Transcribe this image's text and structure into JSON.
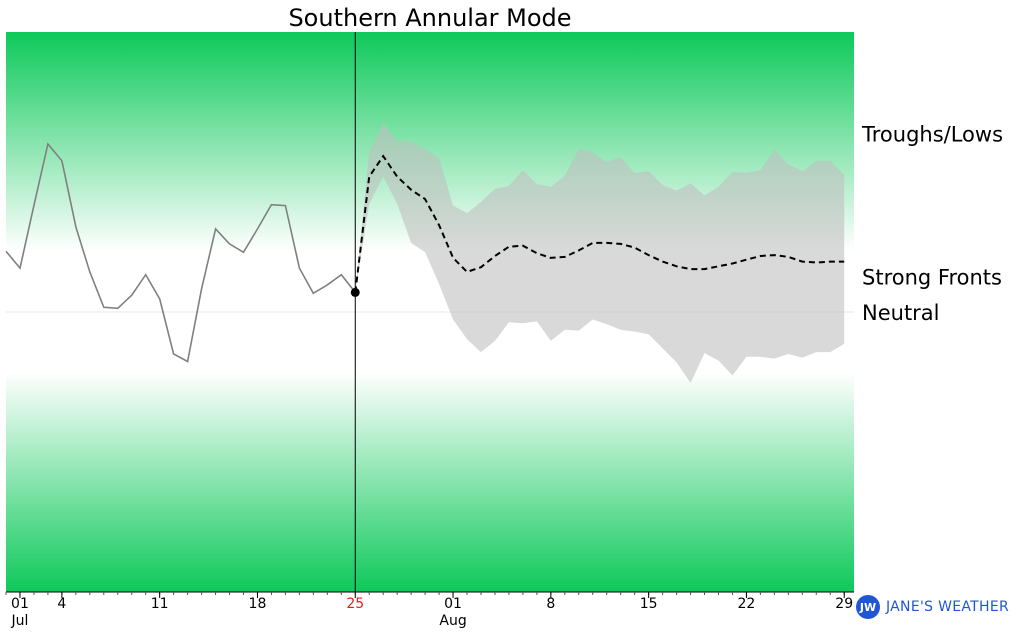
{
  "chart_data": {
    "type": "line",
    "title": "Southern Annular Mode",
    "xlabel": "",
    "ylabel": "",
    "x_range": [
      0,
      60.7
    ],
    "y_range": [
      -3,
      3
    ],
    "today_day": 25,
    "today_label": "25",
    "zones": [
      {
        "label": "Troughs/Lows",
        "from": 0.65,
        "to": 3.0,
        "color": "#0dc95a"
      },
      {
        "label": "Neutral",
        "from": -0.65,
        "to": 0.65,
        "color": "#ffffff"
      },
      {
        "label": "Strong Fronts",
        "from": -3.0,
        "to": -0.65,
        "color": "#0dc95a"
      }
    ],
    "x_ticks": [
      {
        "day": 1,
        "label": "01",
        "sub": "Jul"
      },
      {
        "day": 4,
        "label": "4",
        "sub": ""
      },
      {
        "day": 11,
        "label": "11",
        "sub": ""
      },
      {
        "day": 18,
        "label": "18",
        "sub": ""
      },
      {
        "day": 25,
        "label": "25",
        "sub": "",
        "highlight": true
      },
      {
        "day": 32,
        "label": "01",
        "sub": "Aug"
      },
      {
        "day": 39,
        "label": "8",
        "sub": ""
      },
      {
        "day": 46,
        "label": "15",
        "sub": ""
      },
      {
        "day": 53,
        "label": "22",
        "sub": ""
      },
      {
        "day": 60,
        "label": "29",
        "sub": ""
      }
    ],
    "series": [
      {
        "kind": "observed",
        "color": "#808080",
        "x": [
          0,
          1,
          2,
          3,
          4,
          5,
          6,
          7,
          8,
          9,
          10,
          11,
          12,
          13,
          14,
          15,
          16,
          17,
          18,
          19,
          20,
          21,
          22,
          23,
          24,
          25
        ],
        "y": [
          0.65,
          0.47,
          1.14,
          1.8,
          1.62,
          0.91,
          0.43,
          0.05,
          0.04,
          0.18,
          0.4,
          0.14,
          -0.45,
          -0.53,
          0.25,
          0.89,
          0.73,
          0.64,
          0.89,
          1.15,
          1.14,
          0.47,
          0.2,
          0.29,
          0.4,
          0.21
        ]
      },
      {
        "kind": "forecast",
        "color": "#000000",
        "x": [
          25,
          26,
          27,
          28,
          29,
          30,
          31,
          32,
          33,
          34,
          35,
          36,
          37,
          38,
          39,
          40,
          41,
          42,
          43,
          44,
          45,
          46,
          47,
          48,
          49,
          50,
          51,
          52,
          53,
          54,
          55,
          56,
          57,
          58,
          59,
          60
        ],
        "y": [
          0.21,
          1.45,
          1.67,
          1.45,
          1.31,
          1.21,
          0.93,
          0.58,
          0.43,
          0.48,
          0.6,
          0.7,
          0.71,
          0.63,
          0.58,
          0.59,
          0.66,
          0.74,
          0.74,
          0.73,
          0.69,
          0.61,
          0.54,
          0.49,
          0.46,
          0.46,
          0.49,
          0.52,
          0.56,
          0.6,
          0.61,
          0.59,
          0.54,
          0.53,
          0.54,
          0.54
        ]
      }
    ],
    "ensemble_band": {
      "color": "#c0c0c0",
      "x": [
        25,
        26,
        27,
        28,
        29,
        30,
        31,
        32,
        33,
        34,
        35,
        36,
        37,
        38,
        39,
        40,
        41,
        42,
        43,
        44,
        45,
        46,
        47,
        48,
        49,
        50,
        51,
        52,
        53,
        54,
        55,
        56,
        57,
        58,
        59,
        60
      ],
      "upper": [
        0.21,
        1.72,
        2.02,
        1.83,
        1.83,
        1.74,
        1.65,
        1.14,
        1.06,
        1.18,
        1.32,
        1.35,
        1.52,
        1.37,
        1.34,
        1.46,
        1.75,
        1.71,
        1.61,
        1.66,
        1.49,
        1.51,
        1.36,
        1.3,
        1.38,
        1.25,
        1.34,
        1.5,
        1.49,
        1.52,
        1.74,
        1.58,
        1.51,
        1.62,
        1.62,
        1.47
      ],
      "lower": [
        0.21,
        1.16,
        1.45,
        1.16,
        0.74,
        0.64,
        0.3,
        -0.08,
        -0.29,
        -0.43,
        -0.31,
        -0.11,
        -0.12,
        -0.1,
        -0.31,
        -0.19,
        -0.2,
        -0.08,
        -0.13,
        -0.19,
        -0.21,
        -0.24,
        -0.39,
        -0.54,
        -0.76,
        -0.44,
        -0.52,
        -0.68,
        -0.48,
        -0.48,
        -0.5,
        -0.45,
        -0.49,
        -0.43,
        -0.43,
        -0.34
      ]
    }
  },
  "brand": {
    "badge": "JW",
    "text": "JANE'S WEATHER"
  }
}
